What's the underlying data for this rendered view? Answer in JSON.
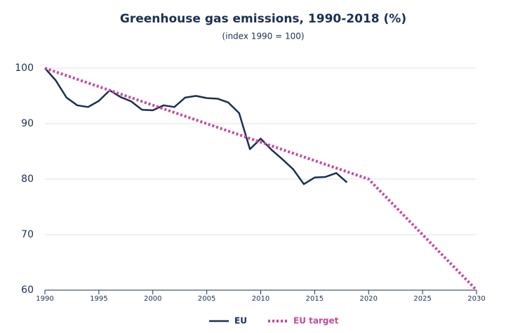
{
  "chart_data": {
    "type": "line",
    "title": "Greenhouse gas emissions, 1990-2018 (%)",
    "subtitle": "(index 1990 = 100)",
    "xlim": [
      1990,
      2030
    ],
    "xticks": [
      1990,
      1995,
      2000,
      2005,
      2010,
      2015,
      2020,
      2025,
      2030
    ],
    "ylim": [
      60,
      100
    ],
    "yticks": [
      60,
      70,
      80,
      90,
      100
    ],
    "grid": true,
    "legend": "bottom",
    "series": [
      {
        "name": "EU",
        "color": "#1b2f53",
        "style": "solid",
        "x": [
          1990,
          1991,
          1992,
          1993,
          1994,
          1995,
          1996,
          1997,
          1998,
          1999,
          2000,
          2001,
          2002,
          2003,
          2004,
          2005,
          2006,
          2007,
          2008,
          2009,
          2010,
          2011,
          2012,
          2013,
          2014,
          2015,
          2016,
          2017,
          2018
        ],
        "values": [
          100,
          97.8,
          94.7,
          93.3,
          93.0,
          94.1,
          96.0,
          94.8,
          94.0,
          92.5,
          92.4,
          93.3,
          93.0,
          94.7,
          95.0,
          94.6,
          94.5,
          93.8,
          91.9,
          85.4,
          87.3,
          85.3,
          83.6,
          81.8,
          79.1,
          80.3,
          80.4,
          81.1,
          79.4
        ]
      },
      {
        "name": "EU target",
        "color": "#c64a9b",
        "style": "dotted",
        "x": [
          1990,
          2020,
          2030
        ],
        "values": [
          100,
          80,
          60
        ]
      }
    ]
  }
}
